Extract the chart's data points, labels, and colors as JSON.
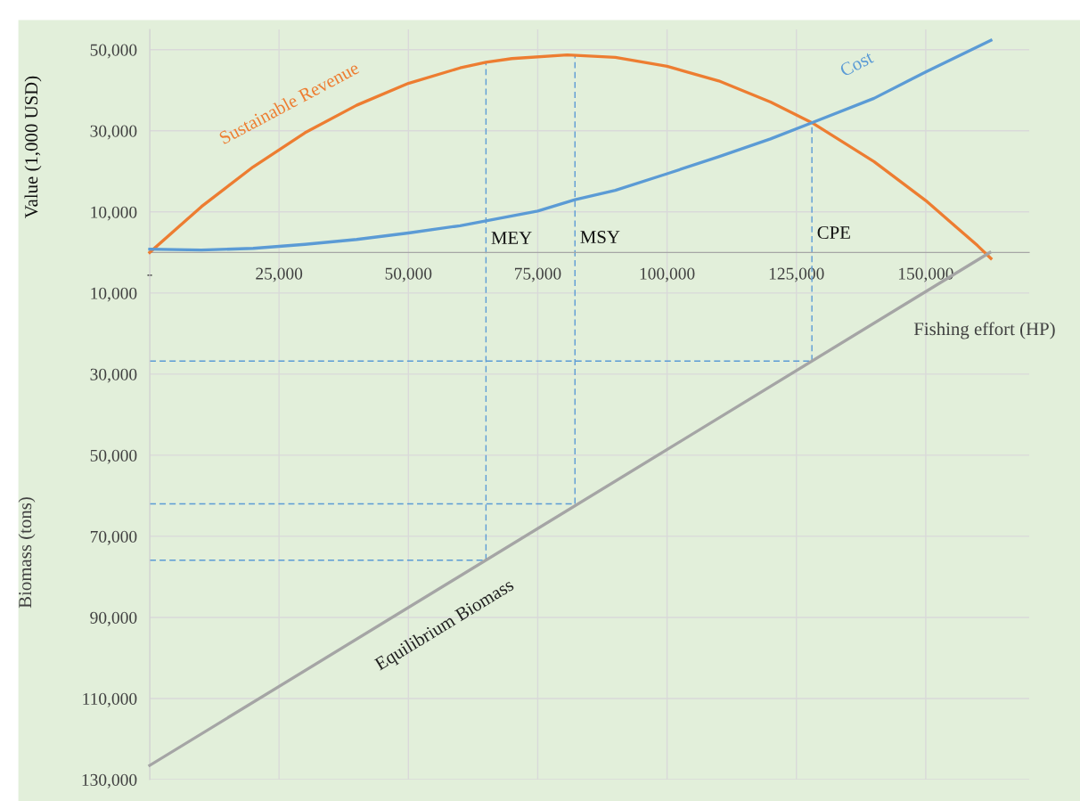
{
  "chart_data": {
    "type": "line",
    "xlabel": "Fishing effort (HP)",
    "ylabel": "Value (1,000 USD)",
    "annotations": [
      "Biomass (tons)",
      {
        "text": "MEY",
        "x": 65000,
        "y": 3200
      },
      {
        "text": "MSY",
        "x": 82200,
        "y": 3400
      },
      {
        "text": "CPE",
        "x": 128000,
        "y": 4500
      }
    ],
    "xlim": [
      0,
      170000
    ],
    "ylim": [
      -130000,
      55000
    ],
    "xticks": [
      {
        "value": 0,
        "label": "-"
      },
      {
        "value": 25000,
        "label": "25,000"
      },
      {
        "value": 50000,
        "label": "50,000"
      },
      {
        "value": 75000,
        "label": "75,000"
      },
      {
        "value": 100000,
        "label": "100,000"
      },
      {
        "value": 125000,
        "label": "125,000"
      },
      {
        "value": 150000,
        "label": "150,000"
      }
    ],
    "yticks": [
      {
        "value": 50000,
        "label": "50,000"
      },
      {
        "value": 30000,
        "label": "30,000"
      },
      {
        "value": 10000,
        "label": "10,000"
      },
      {
        "value": -10000,
        "label": "10,000"
      },
      {
        "value": -30000,
        "label": "30,000"
      },
      {
        "value": -50000,
        "label": "50,000"
      },
      {
        "value": -70000,
        "label": "70,000"
      },
      {
        "value": -90000,
        "label": "90,000"
      },
      {
        "value": -110000,
        "label": "110,000"
      },
      {
        "value": -130000,
        "label": "130,000"
      }
    ],
    "grid": true,
    "marker": "none",
    "line_style": "solid",
    "series": [
      {
        "name": "Sustainable Revenue",
        "color": "#ed7d31",
        "x": [
          0,
          10000,
          20000,
          30000,
          40000,
          50000,
          60000,
          65000,
          70000,
          80700,
          90000,
          100000,
          110000,
          120000,
          128000,
          140000,
          150000,
          160000,
          162600
        ],
        "values": [
          0,
          11300,
          21100,
          29500,
          36300,
          41700,
          45500,
          46900,
          47800,
          48700,
          48100,
          45900,
          42300,
          37100,
          32000,
          22400,
          12800,
          1700,
          -1500
        ]
      },
      {
        "name": "Cost",
        "color": "#5b9bd5",
        "x": [
          0,
          10000,
          20000,
          25000,
          30000,
          40000,
          50000,
          60000,
          65000,
          70000,
          75000,
          82200,
          90000,
          100000,
          110000,
          120000,
          128000,
          140000,
          150000,
          162600
        ],
        "values": [
          800,
          600,
          1000,
          1500,
          2000,
          3200,
          4800,
          6600,
          7800,
          9000,
          10200,
          13000,
          15300,
          19400,
          23600,
          28000,
          32000,
          38000,
          44500,
          52300
        ]
      },
      {
        "name": "Equilibrium Biomass",
        "color": "#a5a5a5",
        "x": [
          0,
          162400
        ],
        "values": [
          -126500,
          0
        ]
      },
      {
        "color": "#5b9bd5",
        "line_style": "dashed",
        "x": [
          65000,
          65000
        ],
        "values": [
          -75900,
          46900
        ]
      },
      {
        "color": "#5b9bd5",
        "line_style": "dashed",
        "x": [
          82200,
          82200
        ],
        "values": [
          -62000,
          48700
        ]
      },
      {
        "color": "#5b9bd5",
        "line_style": "dashed",
        "x": [
          128000,
          128000
        ],
        "values": [
          -26800,
          32000
        ]
      },
      {
        "color": "#5b9bd5",
        "line_style": "dashed",
        "x": [
          0,
          65000
        ],
        "values": [
          -75900,
          -75900
        ]
      },
      {
        "color": "#5b9bd5",
        "line_style": "dashed",
        "x": [
          0,
          82200
        ],
        "values": [
          -62000,
          -62000
        ]
      },
      {
        "color": "#5b9bd5",
        "line_style": "dashed",
        "x": [
          0,
          128000
        ],
        "values": [
          -26800,
          -26800
        ]
      }
    ]
  }
}
